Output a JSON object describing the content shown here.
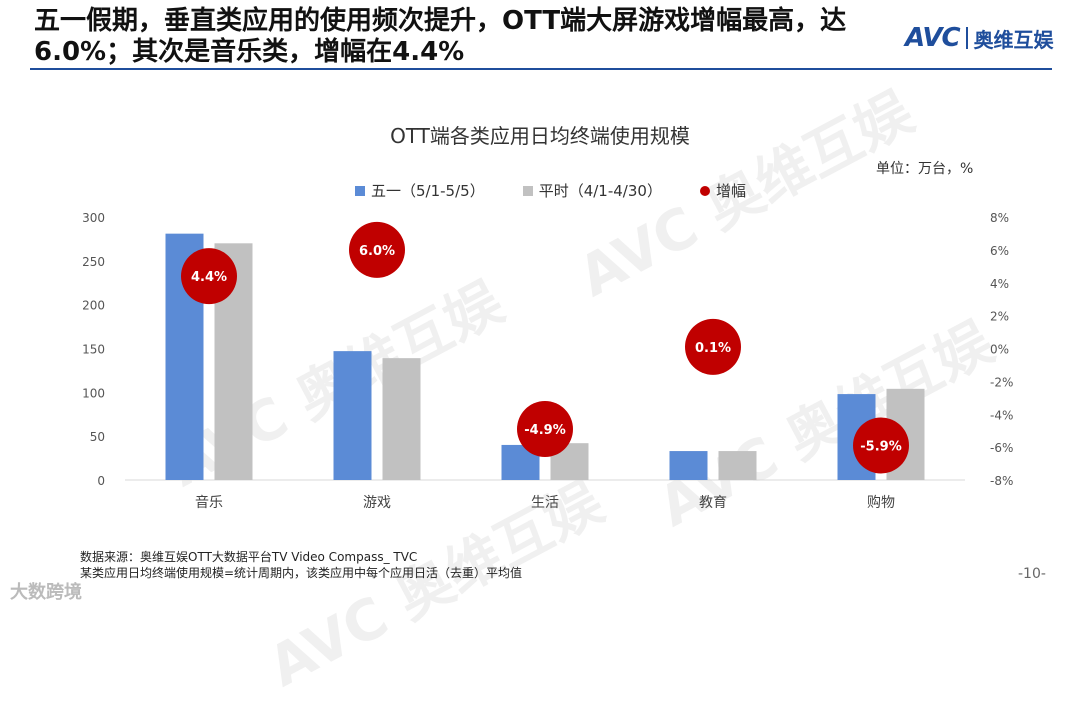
{
  "headline": "五一假期，垂直类应用的使用频次提升，OTT端大屏游戏增幅最高，达6.0%；其次是音乐类，增幅在4.4%",
  "logo": {
    "brand": "AVC",
    "cn": "奥维互娱"
  },
  "watermark": "AVC 奥维互娱",
  "chart_data": {
    "type": "bar",
    "title": "OTT端各类应用日均终端使用规模",
    "unit_label": "单位：万台，%",
    "categories": [
      "音乐",
      "游戏",
      "生活",
      "教育",
      "购物"
    ],
    "series": [
      {
        "name": "五一（5/1-5/5）",
        "values": [
          281,
          147,
          40,
          33,
          98
        ],
        "color": "#5b8bd6"
      },
      {
        "name": "平时（4/1-4/30）",
        "values": [
          270,
          139,
          42,
          33,
          104
        ],
        "color": "#c1c1c1"
      }
    ],
    "growth": {
      "name": "增幅",
      "values": [
        4.4,
        6.0,
        -4.9,
        0.1,
        -5.9
      ],
      "labels": [
        "4.4%",
        "6.0%",
        "-4.9%",
        "0.1%",
        "-5.9%"
      ],
      "color": "#c00000"
    },
    "ylim_left": [
      0,
      300
    ],
    "yticks_left": [
      0,
      50,
      100,
      150,
      200,
      250,
      300
    ],
    "ylim_right": [
      -8,
      8
    ],
    "yticks_right": [
      "8%",
      "6%",
      "4%",
      "2%",
      "0%",
      "-2%",
      "-4%",
      "-6%",
      "-8%"
    ],
    "yticks_right_values": [
      8,
      6,
      4,
      2,
      0,
      -2,
      -4,
      -6,
      -8
    ]
  },
  "footnotes": [
    "数据来源：奥维互娱OTT大数据平台TV Video Compass_ TVC",
    "某类应用日均终端使用规模=统计周期内，该类应用中每个应用日活（去重）平均值"
  ],
  "page_number": "-10-",
  "corner_badge": "大数跨境"
}
